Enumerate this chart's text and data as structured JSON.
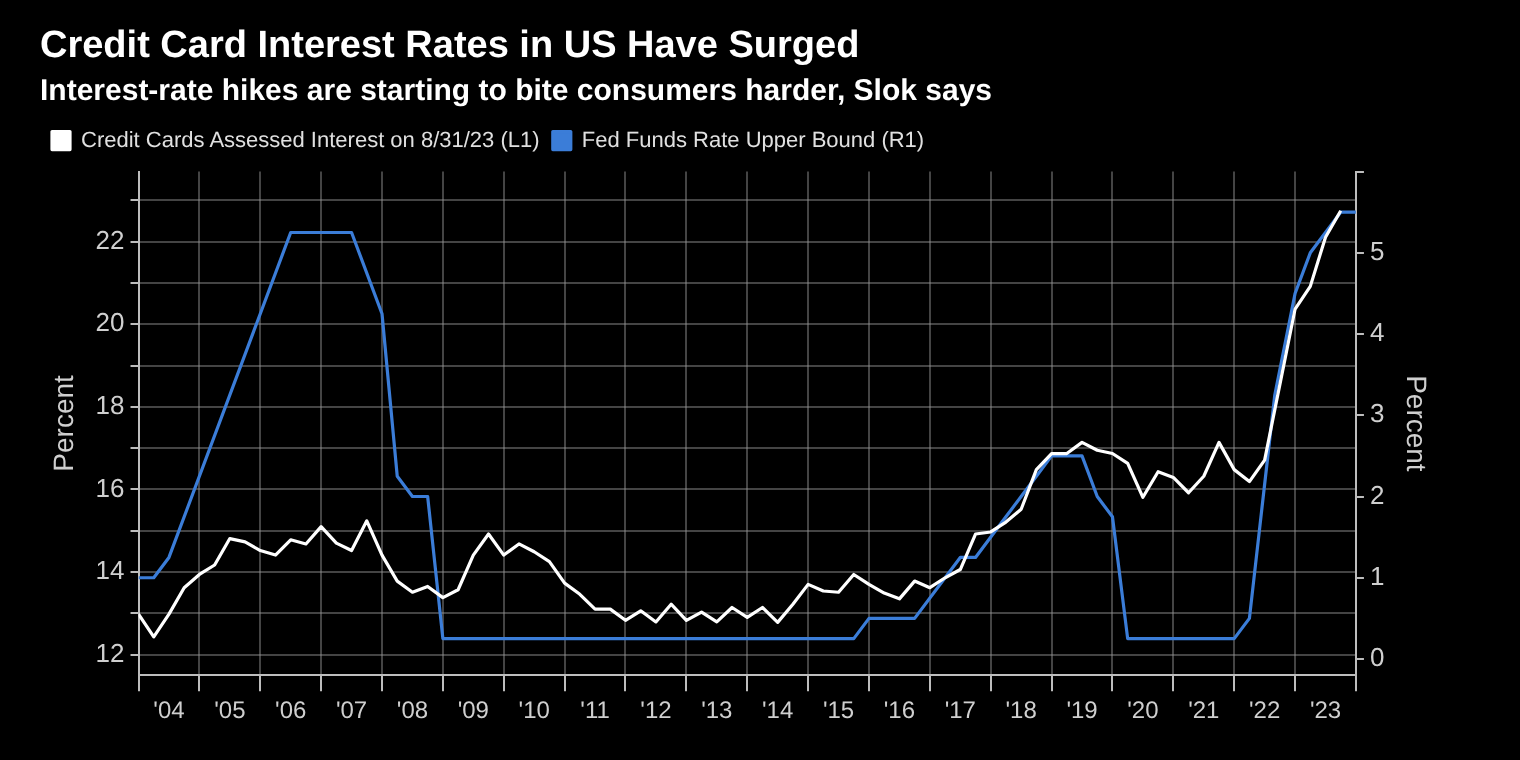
{
  "chart_data": {
    "type": "line",
    "title": "Credit Card Interest Rates in US Have Surged",
    "subtitle": "Interest-rate hikes are starting to bite consumers harder, Slok says",
    "ylabel": "Percent",
    "y2label": "Percent",
    "legend": "top left",
    "grid": true,
    "marker": "none",
    "line_style": "solid",
    "xlim": [
      "2004-01",
      "2024-01"
    ],
    "xticks": [
      {
        "value": "2004-01",
        "label": null
      },
      {
        "value": "2004-07",
        "label": "'04"
      },
      {
        "value": "2005-01",
        "label": null
      },
      {
        "value": "2005-07",
        "label": "'05"
      },
      {
        "value": "2006-01",
        "label": null
      },
      {
        "value": "2006-07",
        "label": "'06"
      },
      {
        "value": "2007-01",
        "label": null
      },
      {
        "value": "2007-07",
        "label": "'07"
      },
      {
        "value": "2008-01",
        "label": null
      },
      {
        "value": "2008-07",
        "label": "'08"
      },
      {
        "value": "2009-01",
        "label": null
      },
      {
        "value": "2009-07",
        "label": "'09"
      },
      {
        "value": "2010-01",
        "label": null
      },
      {
        "value": "2010-07",
        "label": "'10"
      },
      {
        "value": "2011-01",
        "label": null
      },
      {
        "value": "2011-07",
        "label": "'11"
      },
      {
        "value": "2012-01",
        "label": null
      },
      {
        "value": "2012-07",
        "label": "'12"
      },
      {
        "value": "2013-01",
        "label": null
      },
      {
        "value": "2013-07",
        "label": "'13"
      },
      {
        "value": "2014-01",
        "label": null
      },
      {
        "value": "2014-07",
        "label": "'14"
      },
      {
        "value": "2015-01",
        "label": null
      },
      {
        "value": "2015-07",
        "label": "'15"
      },
      {
        "value": "2016-01",
        "label": null
      },
      {
        "value": "2016-07",
        "label": "'16"
      },
      {
        "value": "2017-01",
        "label": null
      },
      {
        "value": "2017-07",
        "label": "'17"
      },
      {
        "value": "2018-01",
        "label": null
      },
      {
        "value": "2018-07",
        "label": "'18"
      },
      {
        "value": "2019-01",
        "label": null
      },
      {
        "value": "2019-07",
        "label": "'19"
      },
      {
        "value": "2020-01",
        "label": null
      },
      {
        "value": "2020-07",
        "label": "'20"
      },
      {
        "value": "2021-01",
        "label": null
      },
      {
        "value": "2021-07",
        "label": "'21"
      },
      {
        "value": "2022-01",
        "label": null
      },
      {
        "value": "2022-07",
        "label": "'22"
      },
      {
        "value": "2023-01",
        "label": null
      },
      {
        "value": "2023-07",
        "label": "'23"
      },
      {
        "value": "2024-01",
        "label": null
      }
    ],
    "ylim": [
      11.5,
      23.7
    ],
    "yticks": [
      12,
      {
        "value": 13,
        "label": null
      },
      14,
      {
        "value": 15,
        "label": null
      },
      16,
      {
        "value": 17,
        "label": null
      },
      18,
      {
        "value": 19,
        "label": null
      },
      20,
      {
        "value": 21,
        "label": null
      },
      22,
      {
        "value": 23,
        "label": null
      }
    ],
    "y2lim": [
      -0.2,
      6
    ],
    "y2ticks": [
      0,
      1,
      2,
      3,
      4,
      5,
      {
        "value": 6,
        "label": null
      }
    ],
    "series": [
      {
        "name": "Credit Cards Assessed Interest on 8/31/23 (L1)",
        "color": "#ffffff",
        "x": [
          "2004-01",
          "2004-04",
          "2004-07",
          "2004-10",
          "2005-01",
          "2005-04",
          "2005-07",
          "2005-10",
          "2006-01",
          "2006-04",
          "2006-07",
          "2006-10",
          "2007-01",
          "2007-04",
          "2007-07",
          "2007-10",
          "2008-01",
          "2008-04",
          "2008-07",
          "2008-10",
          "2009-01",
          "2009-04",
          "2009-07",
          "2009-10",
          "2010-01",
          "2010-04",
          "2010-07",
          "2010-10",
          "2011-01",
          "2011-04",
          "2011-07",
          "2011-10",
          "2012-01",
          "2012-04",
          "2012-07",
          "2012-10",
          "2013-01",
          "2013-04",
          "2013-07",
          "2013-10",
          "2014-01",
          "2014-04",
          "2014-07",
          "2014-10",
          "2015-01",
          "2015-04",
          "2015-07",
          "2015-10",
          "2016-01",
          "2016-04",
          "2016-07",
          "2016-10",
          "2017-01",
          "2017-04",
          "2017-07",
          "2017-10",
          "2018-01",
          "2018-04",
          "2018-07",
          "2018-10",
          "2019-01",
          "2019-04",
          "2019-07",
          "2019-10",
          "2020-01",
          "2020-04",
          "2020-07",
          "2020-10",
          "2021-01",
          "2021-04",
          "2021-07",
          "2021-10",
          "2022-01",
          "2022-04",
          "2022-07",
          "2022-10",
          "2023-01",
          "2023-04",
          "2023-07",
          "2023-10"
        ],
        "values": [
          12.98,
          12.43,
          12.98,
          13.62,
          13.94,
          14.17,
          14.81,
          14.73,
          14.52,
          14.41,
          14.78,
          14.68,
          15.1,
          14.7,
          14.52,
          15.24,
          14.41,
          13.78,
          13.51,
          13.65,
          13.38,
          13.57,
          14.41,
          14.92,
          14.41,
          14.68,
          14.49,
          14.25,
          13.73,
          13.46,
          13.1,
          13.1,
          12.83,
          13.06,
          12.79,
          13.22,
          12.83,
          13.03,
          12.79,
          13.14,
          12.9,
          13.14,
          12.78,
          13.22,
          13.7,
          13.54,
          13.51,
          13.94,
          13.7,
          13.49,
          13.35,
          13.78,
          13.62,
          13.86,
          14.06,
          14.92,
          14.97,
          15.21,
          15.52,
          16.48,
          16.87,
          16.87,
          17.14,
          16.95,
          16.87,
          16.63,
          15.81,
          16.43,
          16.29,
          15.92,
          16.32,
          17.14,
          16.48,
          16.19,
          16.71,
          18.54,
          20.37,
          20.92,
          22.11,
          22.75
        ]
      },
      {
        "name": "Fed Funds Rate Upper Bound (R1)",
        "color": "#3b7dd8",
        "axis": "y2",
        "x": [
          "2004-01",
          "2004-04",
          "2004-07",
          "2006-07",
          "2007-07",
          "2008-01",
          "2008-04",
          "2008-07",
          "2008-10",
          "2009-01",
          "2015-10",
          "2016-01",
          "2016-10",
          "2017-07",
          "2017-10",
          "2018-04",
          "2018-07",
          "2018-10",
          "2019-01",
          "2019-07",
          "2019-10",
          "2020-01",
          "2020-04",
          "2022-01",
          "2022-04",
          "2022-09",
          "2023-01",
          "2023-04",
          "2023-07",
          "2023-10",
          "2024-01"
        ],
        "values": [
          1.0,
          1.0,
          1.25,
          5.25,
          5.25,
          4.25,
          2.25,
          2.0,
          2.0,
          0.25,
          0.25,
          0.5,
          0.5,
          1.25,
          1.25,
          1.75,
          2.0,
          2.25,
          2.5,
          2.5,
          2.0,
          1.75,
          0.25,
          0.25,
          0.5,
          3.25,
          4.5,
          5.0,
          5.25,
          5.5,
          5.5
        ]
      }
    ]
  }
}
